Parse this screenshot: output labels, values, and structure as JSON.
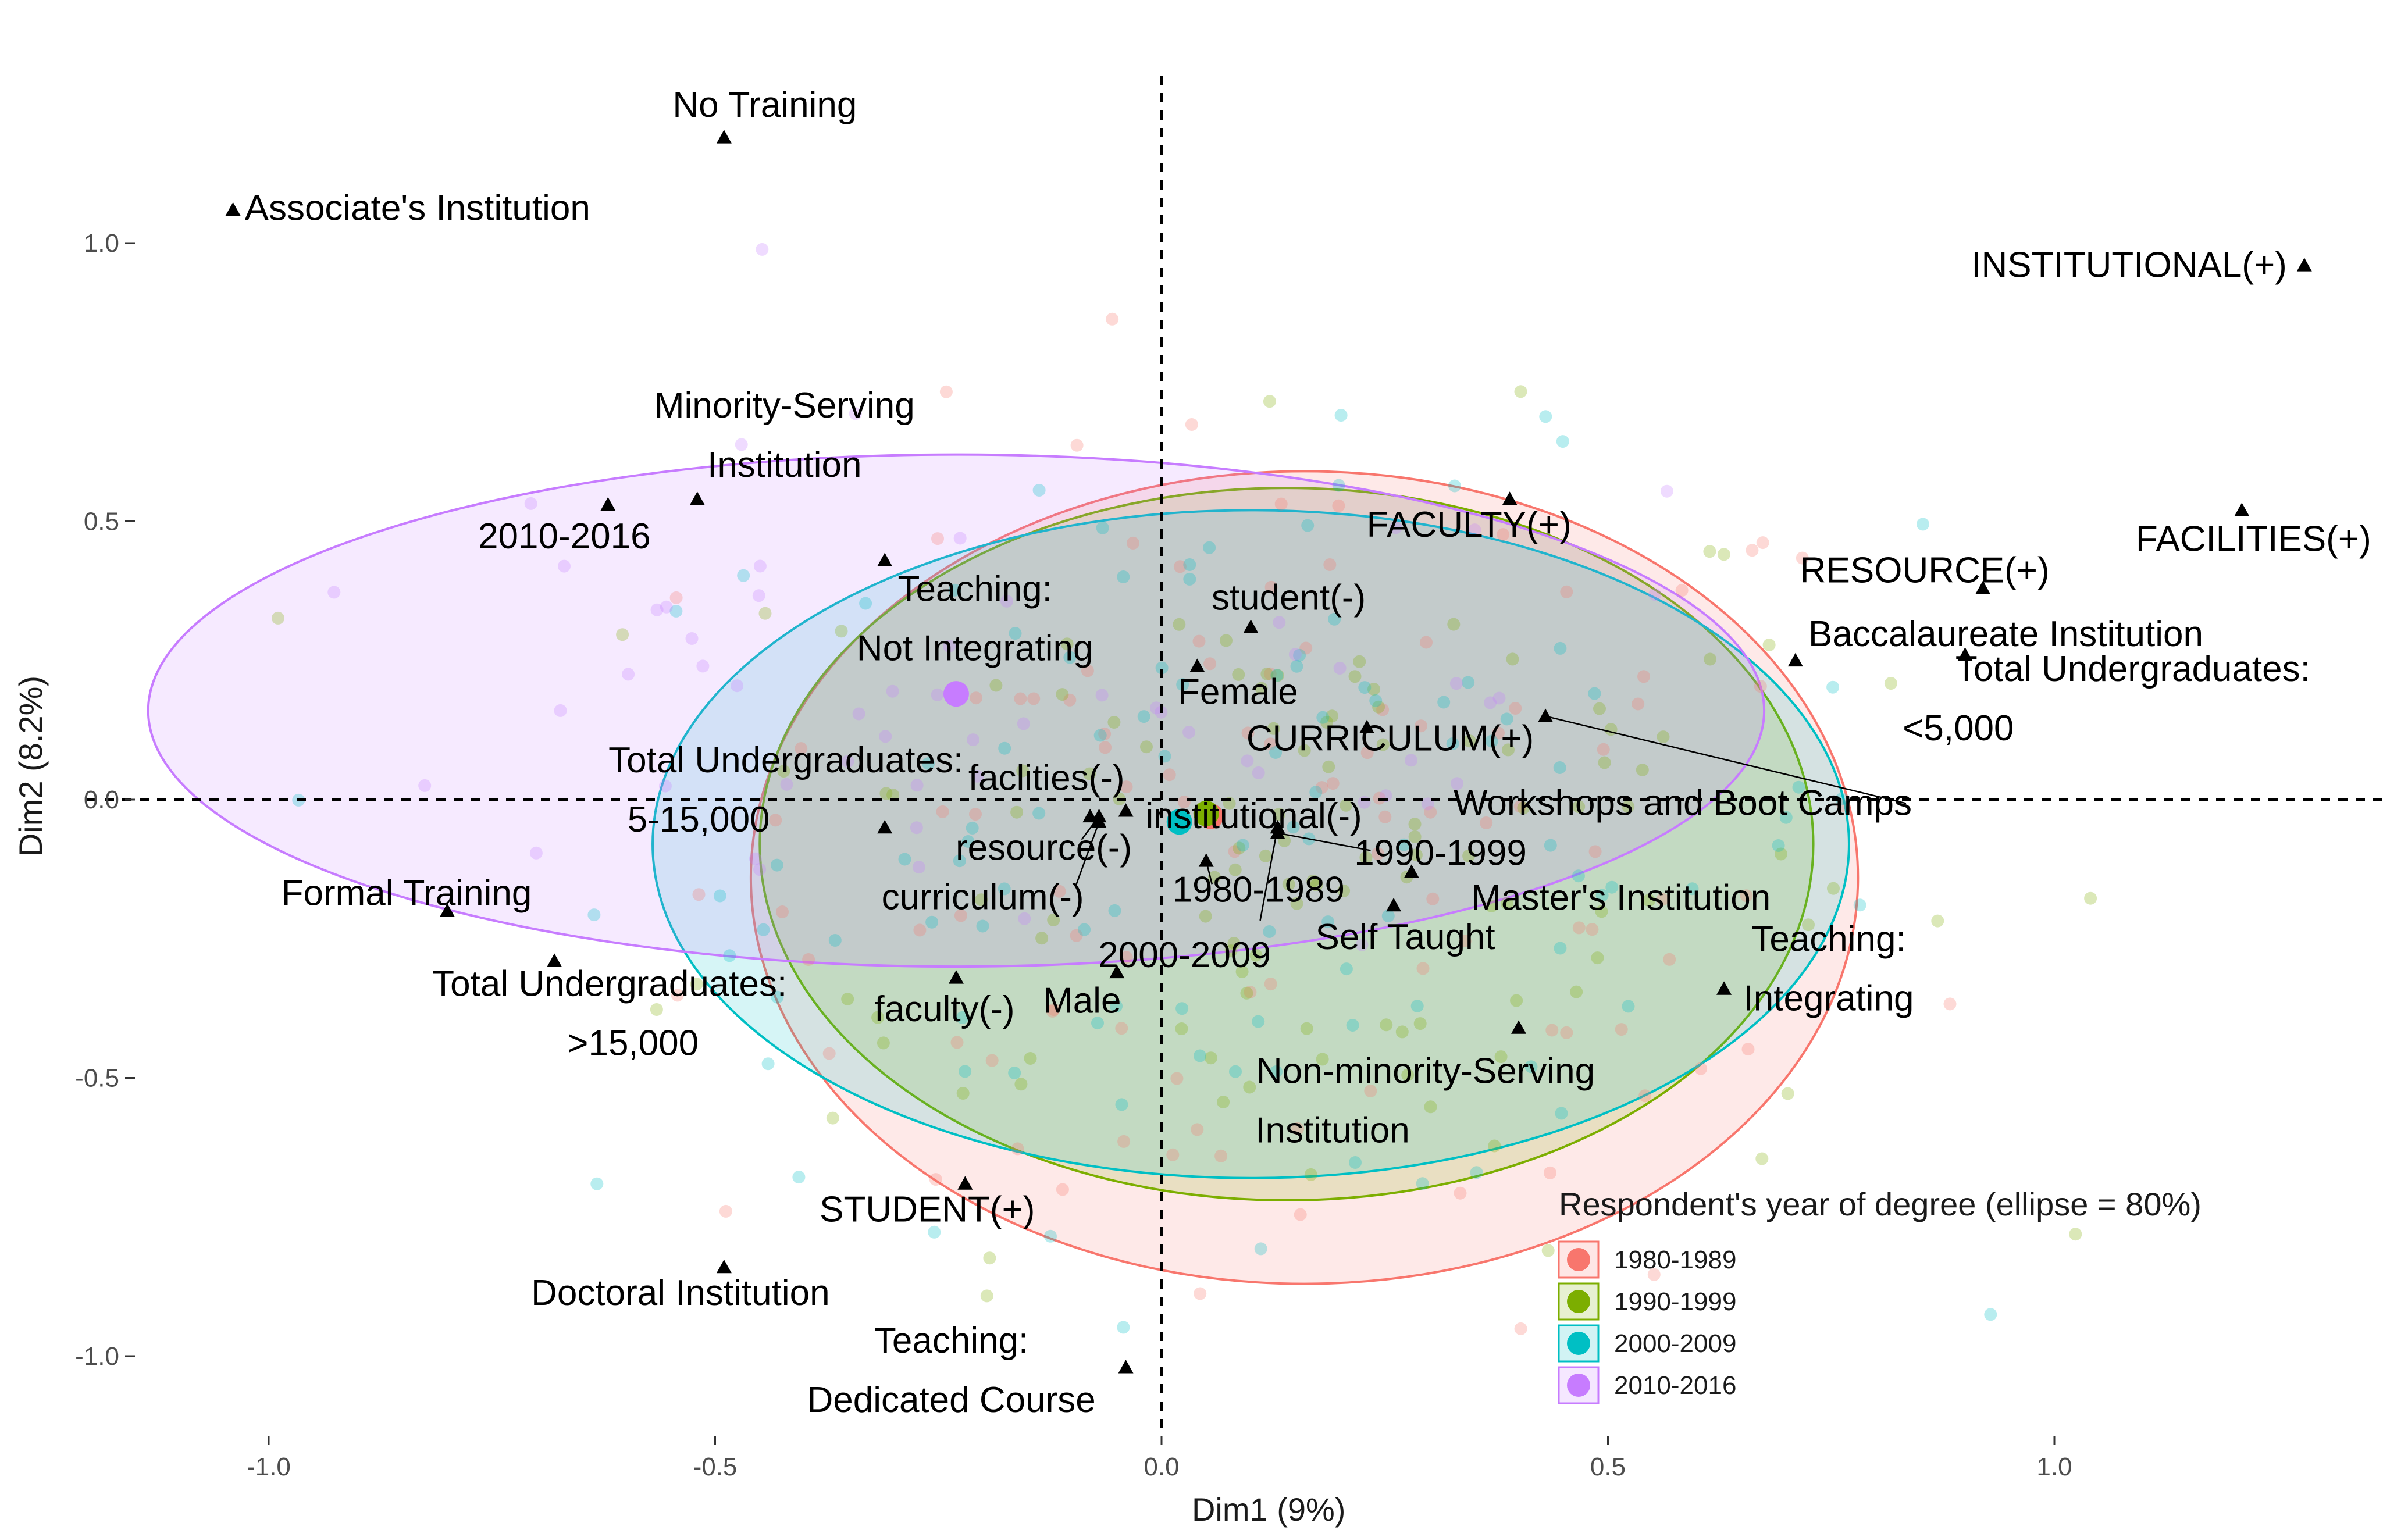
{
  "chart_data": {
    "type": "scatter",
    "title": "",
    "xlabel": "Dim1 (9%)",
    "ylabel": "Dim2 (8.2%)",
    "xlim": [
      -1.15,
      1.4
    ],
    "ylim": [
      -1.14,
      1.3
    ],
    "x_ticks": [
      -1.0,
      -0.5,
      0.0,
      0.5,
      1.0
    ],
    "x_tick_labels": [
      "-1.0",
      "-0.5",
      "0.0",
      "0.5",
      "1.0"
    ],
    "y_ticks": [
      -1.0,
      -0.5,
      0.0,
      0.5,
      1.0
    ],
    "y_tick_labels": [
      "-1.0",
      "-0.5",
      "0.0",
      "0.5",
      "1.0"
    ],
    "grid": false,
    "reference_lines": {
      "x": 0,
      "y": 0,
      "style": "dashed"
    },
    "legend": {
      "title": "Respondent's year of degree (ellipse = 80%)",
      "position": "bottom-right",
      "entries": [
        {
          "label": "1980-1989",
          "color": "#F8766D"
        },
        {
          "label": "1990-1999",
          "color": "#7CAE00"
        },
        {
          "label": "2000-2009",
          "color": "#00BFC4"
        },
        {
          "label": "2010-2016",
          "color": "#C77CFF"
        }
      ]
    },
    "groups": [
      {
        "name": "1980-1989",
        "color": "#F8766D",
        "centroid": [
          0.055,
          -0.03
        ],
        "ellipse": {
          "cx": 0.16,
          "cy": -0.14,
          "rx": 0.62,
          "ry": 0.73
        }
      },
      {
        "name": "1990-1999",
        "color": "#7CAE00",
        "centroid": [
          0.05,
          -0.025
        ],
        "ellipse": {
          "cx": 0.14,
          "cy": -0.08,
          "rx": 0.59,
          "ry": 0.64
        }
      },
      {
        "name": "2000-2009",
        "color": "#00BFC4",
        "centroid": [
          0.02,
          -0.04
        ],
        "ellipse": {
          "cx": 0.1,
          "cy": -0.08,
          "rx": 0.67,
          "ry": 0.6
        }
      },
      {
        "name": "2010-2016",
        "color": "#C77CFF",
        "centroid": [
          -0.23,
          0.19
        ],
        "ellipse": {
          "cx": -0.23,
          "cy": 0.16,
          "rx": 0.905,
          "ry": 0.46
        }
      }
    ],
    "variables": [
      {
        "label": "No Training",
        "x": -0.49,
        "y": 1.19
      },
      {
        "label": "Associate's Institution",
        "x": -1.04,
        "y": 1.06
      },
      {
        "label": "INSTITUTIONAL(+)",
        "x": 1.28,
        "y": 0.96
      },
      {
        "label": "Minority-Serving Institution",
        "x": -0.52,
        "y": 0.54
      },
      {
        "label": "2010-2016",
        "x": -0.62,
        "y": 0.53
      },
      {
        "label": "FACULTY(+)",
        "x": 0.39,
        "y": 0.54
      },
      {
        "label": "FACILITIES(+)",
        "x": 1.21,
        "y": 0.52
      },
      {
        "label": "RESOURCE(+)",
        "x": 0.92,
        "y": 0.38
      },
      {
        "label": "Teaching: Not Integrating",
        "x": -0.31,
        "y": 0.43
      },
      {
        "label": "student(-)",
        "x": 0.1,
        "y": 0.31
      },
      {
        "label": "Baccalaureate Institution",
        "x": 0.9,
        "y": 0.26
      },
      {
        "label": "Female",
        "x": 0.04,
        "y": 0.24
      },
      {
        "label": "Total Undergraduates: <5,000",
        "x": 0.71,
        "y": 0.25
      },
      {
        "label": "CURRICULUM(+)",
        "x": 0.23,
        "y": 0.13
      },
      {
        "label": "Workshops and Boot Camps",
        "x": 0.43,
        "y": 0.15
      },
      {
        "label": "Total Undergraduates: 5-15,000",
        "x": -0.31,
        "y": -0.05
      },
      {
        "label": "faclities(-)",
        "x": -0.08,
        "y": -0.03
      },
      {
        "label": "institutional(-)",
        "x": -0.04,
        "y": -0.02
      },
      {
        "label": "resource(-)",
        "x": -0.07,
        "y": -0.03
      },
      {
        "label": "curriculum(-)",
        "x": -0.07,
        "y": -0.04
      },
      {
        "label": "1990-1999",
        "x": 0.13,
        "y": -0.06
      },
      {
        "label": "1980-1989",
        "x": 0.05,
        "y": -0.11
      },
      {
        "label": "Master's Institution",
        "x": 0.28,
        "y": -0.13
      },
      {
        "label": "2000-2009",
        "x": 0.13,
        "y": -0.05
      },
      {
        "label": "Self Taught",
        "x": 0.26,
        "y": -0.19
      },
      {
        "label": "Formal Training",
        "x": -0.8,
        "y": -0.2
      },
      {
        "label": "Total Undergraduates: >15,000",
        "x": -0.68,
        "y": -0.29
      },
      {
        "label": "Teaching: Integrating",
        "x": 0.63,
        "y": -0.34
      },
      {
        "label": "faculty(-)",
        "x": -0.23,
        "y": -0.32
      },
      {
        "label": "Male",
        "x": -0.05,
        "y": -0.31
      },
      {
        "label": "Non-minority-Serving Institution",
        "x": 0.4,
        "y": -0.41
      },
      {
        "label": "STUDENT(+)",
        "x": -0.22,
        "y": -0.69
      },
      {
        "label": "Doctoral Institution",
        "x": -0.49,
        "y": -0.84
      },
      {
        "label": "Teaching: Dedicated Course",
        "x": -0.04,
        "y": -1.02
      }
    ],
    "individuals_note_visible": false
  }
}
